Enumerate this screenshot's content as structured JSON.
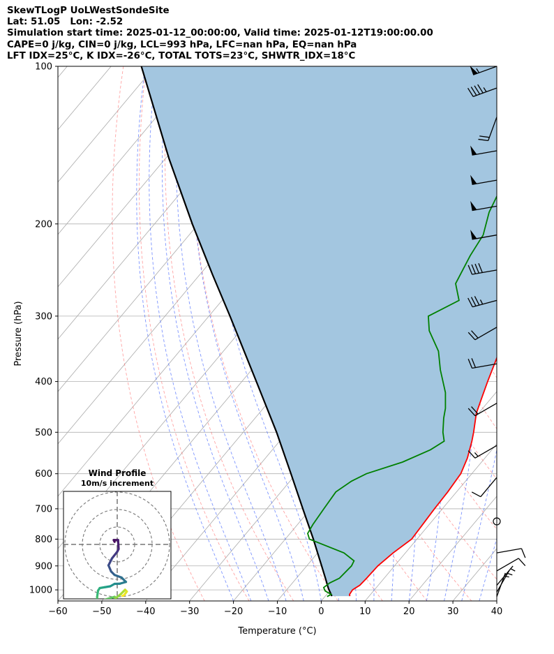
{
  "title_lines": [
    "SkewTLogP UoLWestSondeSite",
    "Lat: 51.05   Lon: -2.52",
    "Simulation start time: 2025-01-12_00:00:00, Valid time: 2025-01-12T19:00:00.00",
    "CAPE=0 j/kg, CIN=0 j/kg, LCL=993 hPa, LFC=nan hPa, EQ=nan hPa",
    "LFT IDX=25°C, K IDX=-26°C, TOTAL TOTS=23°C, SHWTR_IDX=18°C"
  ],
  "chart_data": [
    {
      "type": "line",
      "chart_kind": "skew-T log-P diagram",
      "xlabel": "Temperature (°C)",
      "ylabel": "Pressure (hPa)",
      "xlim": [
        -60,
        40
      ],
      "ylim": [
        1050,
        100
      ],
      "y_scale": "log",
      "skew_deg_per_decade": 100,
      "x_ticks": [
        -60,
        -50,
        -40,
        -30,
        -20,
        -10,
        0,
        10,
        20,
        30,
        40
      ],
      "y_ticks": [
        1000,
        900,
        800,
        700,
        600,
        500,
        400,
        300,
        200,
        100
      ],
      "grid": true,
      "colors": {
        "temperature": "#ff0000",
        "dewpoint": "#008000",
        "parcel": "#000000",
        "cape_cin_fill": "#a3c6e0",
        "dry_adiabats": "#ff6666",
        "moist_adiabats": "#4466ff",
        "isotherms": "#aaaaaa"
      },
      "series": [
        {
          "role": "temperature",
          "points": [
            [
              1028,
              5.6
            ],
            [
              1020,
              5.2
            ],
            [
              1000,
              5
            ],
            [
              980,
              5.8
            ],
            [
              950,
              6
            ],
            [
              900,
              6.2
            ],
            [
              850,
              7.2
            ],
            [
              800,
              8.8
            ],
            [
              750,
              8.5
            ],
            [
              700,
              8.2
            ],
            [
              650,
              8
            ],
            [
              600,
              7.5
            ],
            [
              560,
              6
            ],
            [
              520,
              3.8
            ],
            [
              500,
              2.5
            ],
            [
              460,
              -0.5
            ],
            [
              430,
              -2.2
            ],
            [
              400,
              -4
            ],
            [
              370,
              -5.8
            ],
            [
              330,
              -8.5
            ],
            [
              300,
              -11
            ],
            [
              280,
              -13.5
            ],
            [
              250,
              -17
            ],
            [
              220,
              -21
            ],
            [
              200,
              -24
            ],
            [
              182,
              -26.5
            ],
            [
              172,
              -25
            ],
            [
              160,
              -21
            ],
            [
              145,
              -20
            ],
            [
              130,
              -17
            ],
            [
              115,
              -13
            ],
            [
              100,
              -10.5
            ]
          ]
        },
        {
          "role": "dewpoint",
          "points": [
            [
              1030,
              0.5
            ],
            [
              1020,
              1
            ],
            [
              1005,
              -1
            ],
            [
              990,
              -2
            ],
            [
              970,
              -1.5
            ],
            [
              950,
              -0.2
            ],
            [
              900,
              0.2
            ],
            [
              880,
              -0.2
            ],
            [
              850,
              -4
            ],
            [
              800,
              -14.5
            ],
            [
              780,
              -16
            ],
            [
              750,
              -16.5
            ],
            [
              700,
              -17
            ],
            [
              650,
              -17.5
            ],
            [
              620,
              -16
            ],
            [
              600,
              -14
            ],
            [
              570,
              -8
            ],
            [
              540,
              -4
            ],
            [
              520,
              -2.5
            ],
            [
              500,
              -4.5
            ],
            [
              470,
              -7
            ],
            [
              450,
              -8.5
            ],
            [
              420,
              -11.5
            ],
            [
              380,
              -17
            ],
            [
              350,
              -21
            ],
            [
              320,
              -27
            ],
            [
              300,
              -30
            ],
            [
              280,
              -26
            ],
            [
              260,
              -30
            ],
            [
              230,
              -32
            ],
            [
              210,
              -33
            ],
            [
              190,
              -36
            ],
            [
              175,
              -37.5
            ],
            [
              160,
              -36
            ],
            [
              140,
              -33
            ],
            [
              120,
              -31
            ],
            [
              105,
              -31
            ],
            [
              100,
              -31
            ]
          ]
        },
        {
          "role": "parcel",
          "points": [
            [
              1028,
              1.5
            ],
            [
              993,
              -0.8
            ],
            [
              950,
              -3.4
            ],
            [
              900,
              -6.6
            ],
            [
              850,
              -10
            ],
            [
              800,
              -13.6
            ],
            [
              700,
              -21.8
            ],
            [
              600,
              -31.2
            ],
            [
              500,
              -42.4
            ],
            [
              400,
              -56.7
            ],
            [
              300,
              -75.2
            ],
            [
              250,
              -87.1
            ],
            [
              200,
              -101.4
            ],
            [
              150,
              -119.2
            ],
            [
              100,
              -143.1
            ]
          ]
        }
      ]
    },
    {
      "type": "line",
      "title": "Wind Profile",
      "subtitle": "10m/s increment",
      "chart_kind": "hodograph",
      "rings_ms": [
        10,
        20,
        30
      ],
      "colormap": "viridis"
    }
  ],
  "wind_barbs": [
    {
      "p": 100,
      "dir": 250,
      "spd": 55
    },
    {
      "p": 110,
      "dir": 250,
      "spd": 45
    },
    {
      "p": 125,
      "dir": 200,
      "spd": 20
    },
    {
      "p": 145,
      "dir": 260,
      "spd": 50
    },
    {
      "p": 165,
      "dir": 260,
      "spd": 50
    },
    {
      "p": 185,
      "dir": 260,
      "spd": 50
    },
    {
      "p": 210,
      "dir": 260,
      "spd": 50
    },
    {
      "p": 245,
      "dir": 260,
      "spd": 40
    },
    {
      "p": 280,
      "dir": 255,
      "spd": 35
    },
    {
      "p": 315,
      "dir": 240,
      "spd": 20
    },
    {
      "p": 370,
      "dir": 260,
      "spd": 20
    },
    {
      "p": 440,
      "dir": 240,
      "spd": 20
    },
    {
      "p": 530,
      "dir": 240,
      "spd": 15
    },
    {
      "p": 610,
      "dir": 220,
      "spd": 10
    },
    {
      "p": 740,
      "dir": 0,
      "spd": 0
    },
    {
      "p": 850,
      "dir": 80,
      "spd": 10
    },
    {
      "p": 920,
      "dir": 60,
      "spd": 10
    },
    {
      "p": 980,
      "dir": 40,
      "spd": 5
    },
    {
      "p": 1010,
      "dir": 30,
      "spd": 5
    },
    {
      "p": 1030,
      "dir": 20,
      "spd": 5
    }
  ],
  "hodograph_trace": [
    [
      -1.5,
      1.5
    ],
    [
      -2.0,
      2.5
    ],
    [
      0.5,
      2.5
    ],
    [
      0.8,
      -2.6
    ],
    [
      0.0,
      -4.2
    ],
    [
      -3,
      -8
    ],
    [
      -5,
      -12
    ],
    [
      -3.5,
      -15.5
    ],
    [
      -1.5,
      -17.5
    ],
    [
      2.5,
      -19
    ],
    [
      5,
      -21.5
    ],
    [
      1.5,
      -22.5
    ],
    [
      -1.5,
      -22.6
    ],
    [
      -4,
      -24
    ],
    [
      -7,
      -24.5
    ],
    [
      -10,
      -25
    ],
    [
      -11,
      -26.5
    ],
    [
      -11.5,
      -30
    ],
    [
      -11.5,
      -33
    ],
    [
      -1.5,
      -30
    ],
    [
      -1.0,
      -31
    ],
    [
      2.0,
      -28.5
    ],
    [
      4.5,
      -26
    ],
    [
      5.5,
      -27
    ],
    [
      4.0,
      -29
    ],
    [
      3.0,
      -29.5
    ]
  ]
}
